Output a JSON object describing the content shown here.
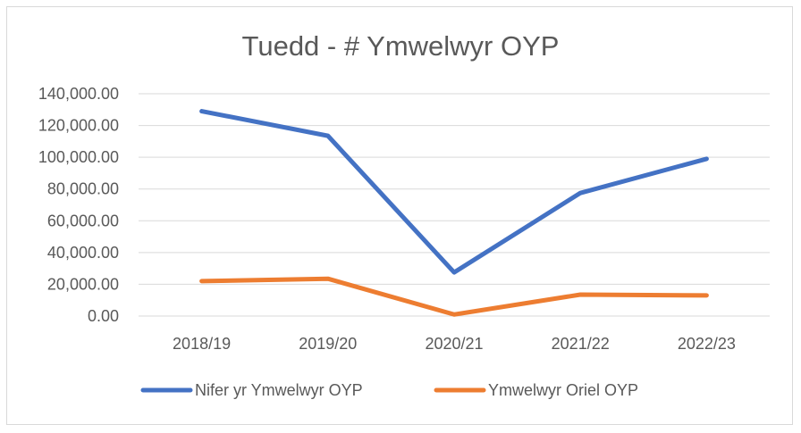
{
  "chart_data": {
    "type": "line",
    "title": "Tuedd - # Ymwelwyr OYP",
    "xlabel": "",
    "ylabel": "",
    "categories": [
      "2018/19",
      "2019/20",
      "2020/21",
      "2021/22",
      "2022/23"
    ],
    "ylim": [
      0,
      140000
    ],
    "yticks": [
      0,
      20000,
      40000,
      60000,
      80000,
      100000,
      120000,
      140000
    ],
    "ytick_labels": [
      "0.00",
      "20,000.00",
      "40,000.00",
      "60,000.00",
      "80,000.00",
      "100,000.00",
      "120,000.00",
      "140,000.00"
    ],
    "grid": true,
    "legend_position": "bottom",
    "series": [
      {
        "name": "Nifer yr Ymwelwyr OYP",
        "color": "#4472c4",
        "values": [
          129000,
          113500,
          27500,
          77500,
          99000
        ]
      },
      {
        "name": "Ymwelwyr Oriel OYP",
        "color": "#ed7d31",
        "values": [
          22000,
          23500,
          1000,
          13500,
          13000
        ]
      }
    ]
  }
}
